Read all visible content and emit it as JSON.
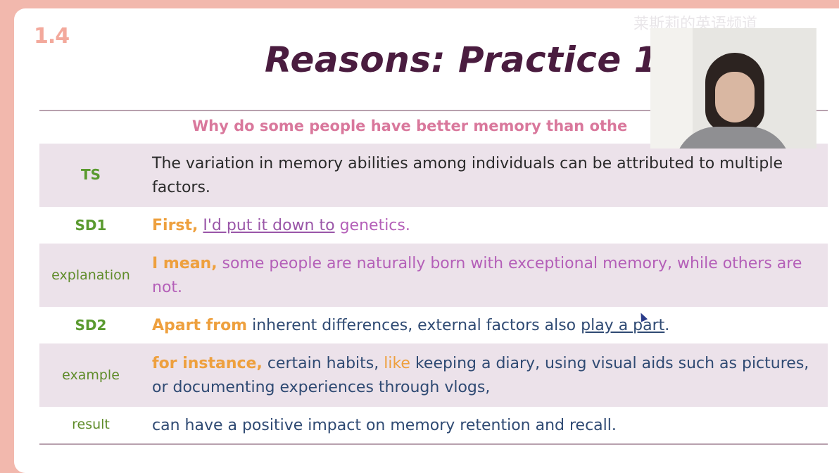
{
  "slide_number": "1.4",
  "title": "Reasons: Practice 1",
  "question": "Why do some people have better memory than othe",
  "watermark": "莱斯莉的英语频道",
  "rows": {
    "ts": {
      "label": "TS",
      "text": "The variation in memory abilities among individuals can be attributed to multiple factors."
    },
    "sd1": {
      "label": "SD1",
      "lead": "First,",
      "phrase": "I'd put it down to",
      "rest": " genetics."
    },
    "explanation": {
      "label": "explanation",
      "lead": "I mean,",
      "rest": " some people are naturally born with exceptional memory, while others are not."
    },
    "sd2": {
      "label": "SD2",
      "lead": "Apart from",
      "mid": " inherent differences, external factors also ",
      "phrase": "play a part",
      "end": "."
    },
    "example": {
      "label": "example",
      "lead": "for instance,",
      "mid": " certain habits, ",
      "like": "like",
      "rest": " keeping a diary, using visual aids such as pictures, or documenting experiences through vlogs,"
    },
    "result": {
      "label": "result",
      "text": "can have a positive impact on memory retention and recall."
    }
  }
}
